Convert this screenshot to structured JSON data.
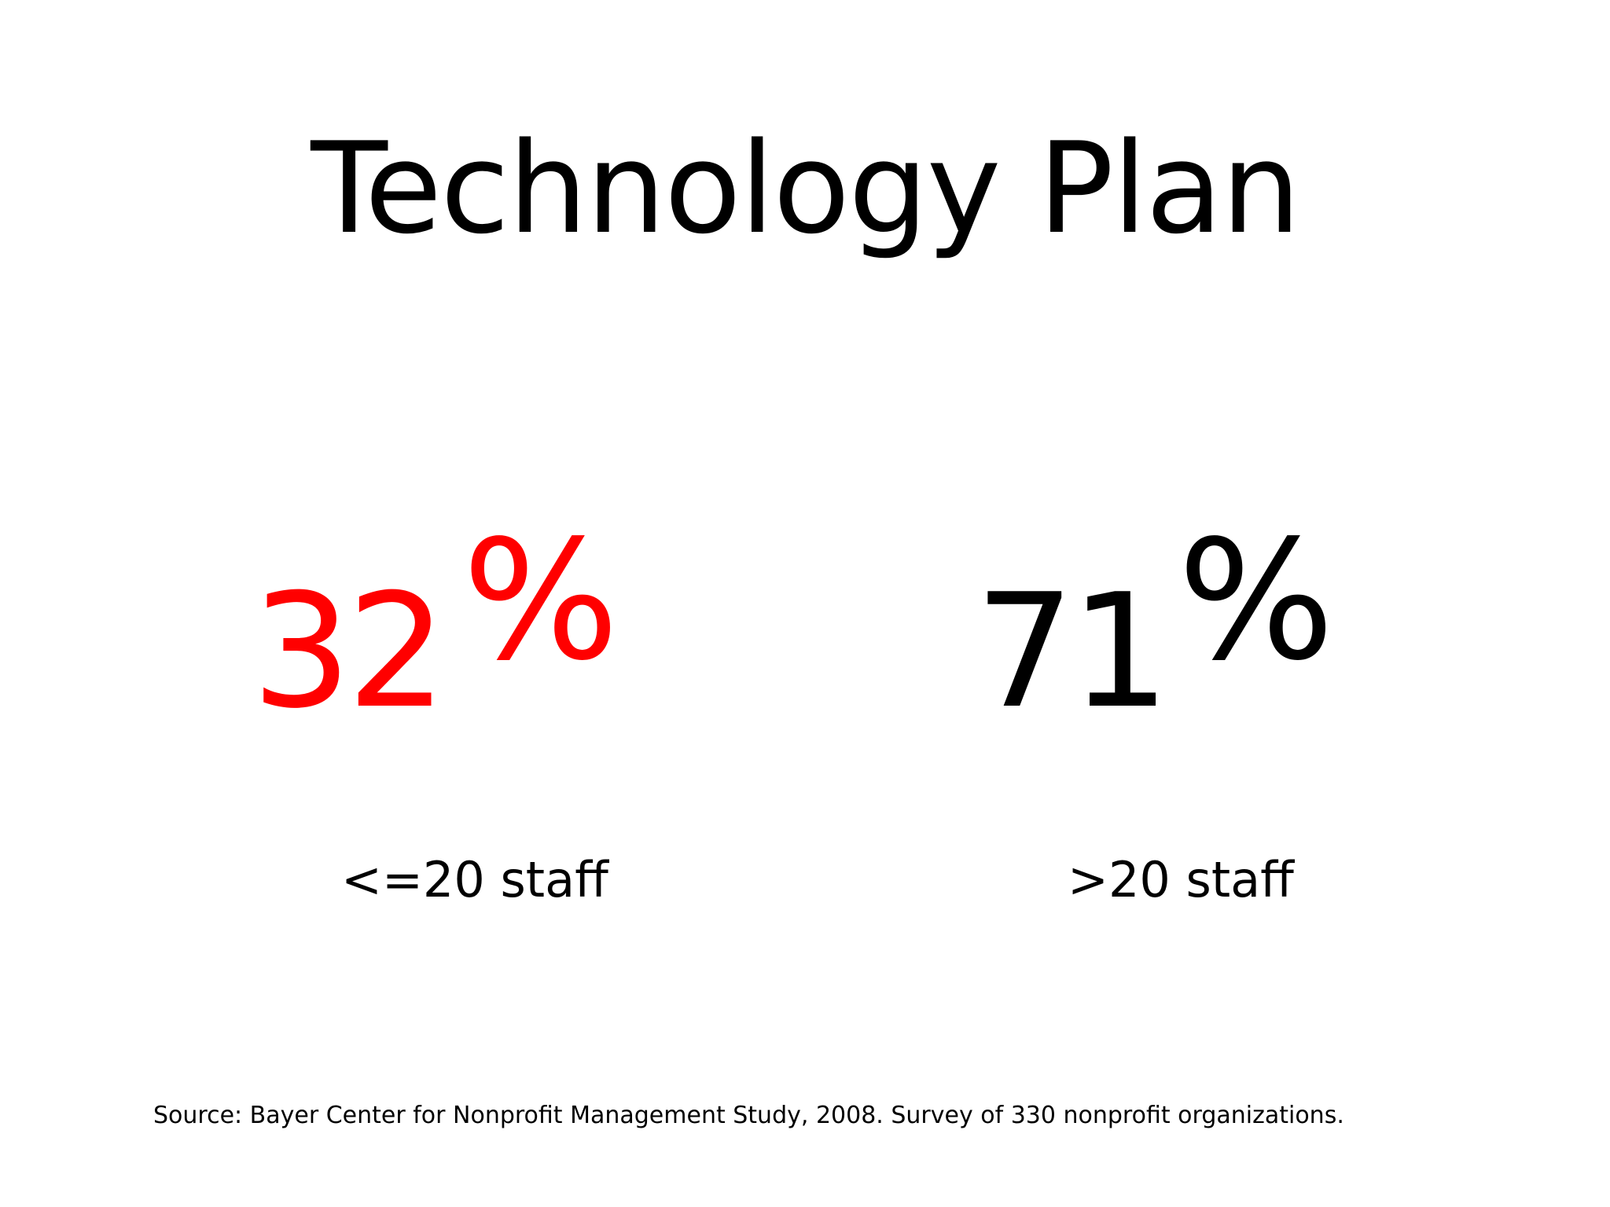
{
  "slide": {
    "title": "Technology Plan",
    "stats": [
      {
        "number": "32",
        "percent_sign": "%",
        "caption": "<=20 staff",
        "color": "#ff0000"
      },
      {
        "number": "71",
        "percent_sign": "%",
        "caption": ">20 staff",
        "color": "#000000"
      }
    ],
    "source": "Source: Bayer Center for Nonprofit Management Study, 2008. Survey of 330 nonprofit organizations."
  }
}
